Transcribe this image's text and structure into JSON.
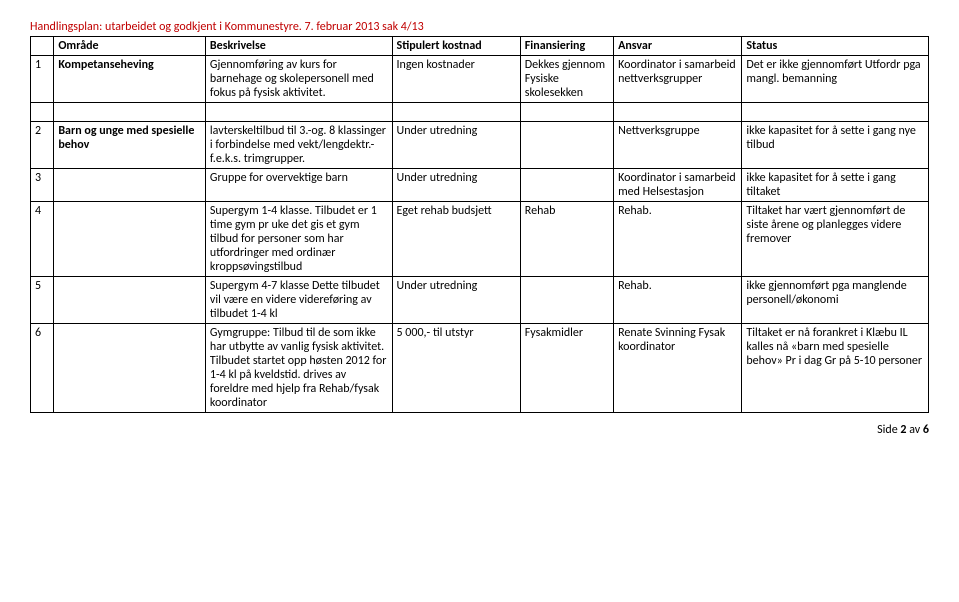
{
  "header": "Handlingsplan: utarbeidet og godkjent i Kommunestyre. 7. februar 2013 sak 4/13",
  "columns": [
    "",
    "Område",
    "Beskrivelse",
    "Stipulert kostnad",
    "Finansiering",
    "Ansvar",
    "Status"
  ],
  "rows": [
    {
      "num": "1",
      "omrade": "Kompetanseheving",
      "beskriv": "Gjennomføring av kurs for barnehage og skolepersonell med fokus på fysisk aktivitet.",
      "stipkost": "Ingen kostnader",
      "finans": "Dekkes gjennom Fysiske skolesekken",
      "ansvar": "Koordinator i samarbeid nettverksgrupper",
      "status": "Det er ikke gjennomført Utfordr pga mangl. bemanning"
    },
    {
      "num": "2",
      "omrade": "Barn og unge med spesielle behov",
      "beskriv": "lavterskeltilbud til 3.-og. 8 klassinger i forbindelse med vekt/lengdektr.-f.e.k.s. trimgrupper.",
      "stipkost": "Under utredning",
      "finans": "",
      "ansvar": "Nettverksgruppe",
      "status": "ikke kapasitet for å sette i gang nye tilbud"
    },
    {
      "num": "3",
      "omrade": "",
      "beskriv": "Gruppe for overvektige barn",
      "stipkost": "Under utredning",
      "finans": "",
      "ansvar": "Koordinator i samarbeid med Helsestasjon",
      "status": "ikke kapasitet for å sette i gang tiltaket"
    },
    {
      "num": "4",
      "omrade": "",
      "beskriv": "Supergym 1-4 klasse. Tilbudet er 1 time gym pr uke det gis et gym tilbud for personer som har utfordringer med ordinær kroppsøvingstilbud",
      "stipkost": "Eget rehab budsjett",
      "finans": "Rehab",
      "ansvar": "Rehab.",
      "status": "Tiltaket har vært gjennomført de siste årene og planlegges videre fremover"
    },
    {
      "num": "5",
      "omrade": "",
      "beskriv": "Supergym 4-7 klasse  Dette tilbudet vil være en videre videreføring av tilbudet 1-4 kl",
      "stipkost": "Under utredning",
      "finans": "",
      "ansvar": "Rehab.",
      "status": "ikke gjennomført pga manglende personell/økonomi"
    },
    {
      "num": "6",
      "omrade": "",
      "beskriv": "Gymgruppe: Tilbud til de som ikke har utbytte av vanlig fysisk aktivitet. Tilbudet startet opp høsten 2012 for 1-4 kl på kveldstid. drives av foreldre med hjelp fra Rehab/fysak koordinator",
      "stipkost": "5 000,- til utstyr",
      "finans": "Fysakmidler",
      "ansvar": "Renate Svinning Fysak koordinator",
      "status": "Tiltaket er nå forankret i Klæbu IL kalles nå «barn med spesielle behov»  Pr i dag Gr på 5-10 personer"
    }
  ],
  "footer_prefix": "Side ",
  "footer_page": "2",
  "footer_middle": " av ",
  "footer_total": "6"
}
